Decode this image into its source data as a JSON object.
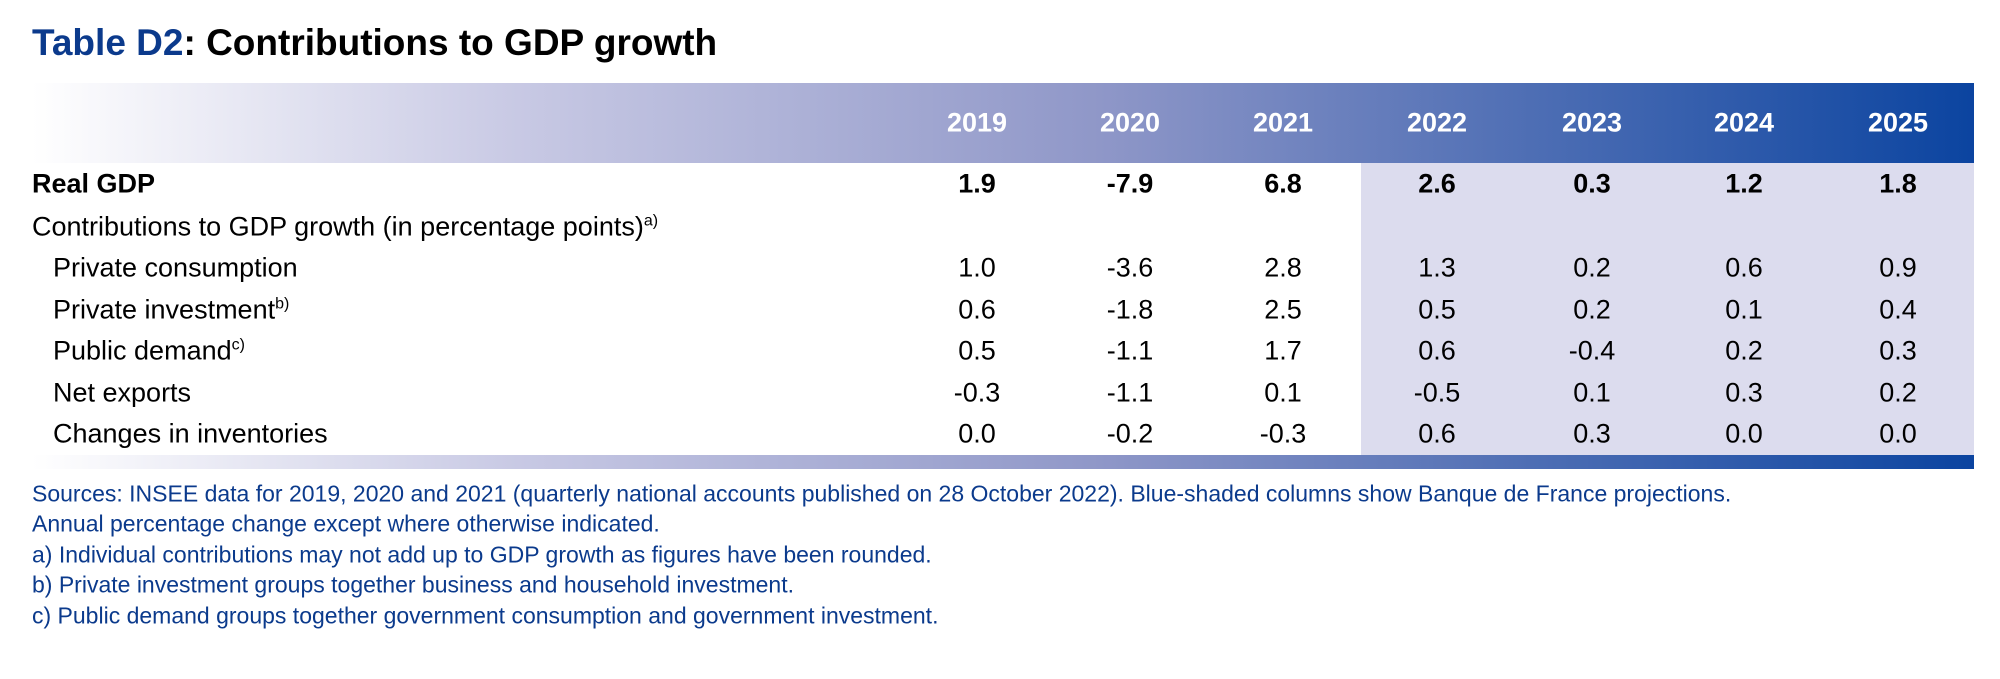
{
  "title": {
    "label": "Table D2",
    "text": ": Contributions to GDP growth"
  },
  "table": {
    "columns": [
      "2019",
      "2020",
      "2021",
      "2022",
      "2023",
      "2024",
      "2025"
    ],
    "rows": [
      {
        "label": "Real GDP",
        "values": [
          "1.9",
          "-7.9",
          "6.8",
          "2.6",
          "0.3",
          "1.2",
          "1.8"
        ]
      },
      {
        "label": "Contributions to GDP growth (in percentage points)",
        "sup": "a)"
      },
      {
        "label": "Private consumption",
        "values": [
          "1.0",
          "-3.6",
          "2.8",
          "1.3",
          "0.2",
          "0.6",
          "0.9"
        ]
      },
      {
        "label": "Private investment",
        "sup": "b)",
        "values": [
          "0.6",
          "-1.8",
          "2.5",
          "0.5",
          "0.2",
          "0.1",
          "0.4"
        ]
      },
      {
        "label": "Public demand",
        "sup": "c)",
        "values": [
          "0.5",
          "-1.1",
          "1.7",
          "0.6",
          "-0.4",
          "0.2",
          "0.3"
        ]
      },
      {
        "label": "Net exports",
        "values": [
          "-0.3",
          "-1.1",
          "0.1",
          "-0.5",
          "0.1",
          "0.3",
          "0.2"
        ]
      },
      {
        "label": "Changes in inventories",
        "values": [
          "0.0",
          "-0.2",
          "-0.3",
          "0.6",
          "0.3",
          "0.0",
          "0.0"
        ]
      }
    ]
  },
  "notes": [
    "Sources: INSEE data for 2019, 2020 and 2021 (quarterly national accounts published on 28 October 2022). Blue-shaded columns show Banque de France projections.",
    "Annual percentage change except where otherwise indicated.",
    "a)  Individual contributions may not add up to GDP growth as figures have been rounded.",
    "b)  Private investment groups together business and household investment.",
    "c)  Public demand groups together government consumption and government investment."
  ]
}
